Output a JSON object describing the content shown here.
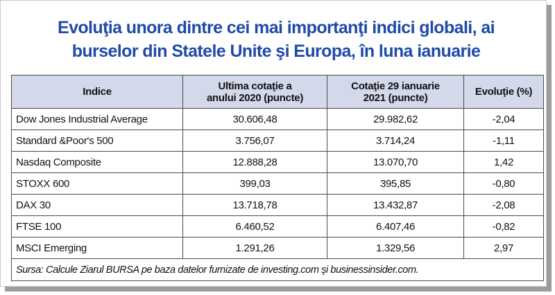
{
  "title": {
    "line1": "Evoluţia unora dintre cei mai importanţi indici globali, ai",
    "line2": "burselor din Statele Unite şi Europa, în luna ianuarie"
  },
  "table": {
    "headers": {
      "index": "Indice",
      "last_quote_line1": "Ultima cotaţie a",
      "last_quote_line2": "anului 2020  (puncte)",
      "jan29_line1": "Cotaţie 29 ianuarie",
      "jan29_line2": "2021 (puncte)",
      "change": "Evoluţie (%)"
    },
    "rows": [
      {
        "name": "Dow Jones Industrial Average",
        "last_2020": "30.606,48",
        "jan29_2021": "29.982,62",
        "change": "-2,04"
      },
      {
        "name": "Standard &Poor's 500",
        "last_2020": "3.756,07",
        "jan29_2021": "3.714,24",
        "change": "-1,11"
      },
      {
        "name": "Nasdaq Composite",
        "last_2020": "12.888,28",
        "jan29_2021": "13.070,70",
        "change": "1,42"
      },
      {
        "name": "STOXX 600",
        "last_2020": "399,03",
        "jan29_2021": "395,85",
        "change": "-0,80"
      },
      {
        "name": "DAX 30",
        "last_2020": "13.718,78",
        "jan29_2021": "13.432,87",
        "change": "-2,08"
      },
      {
        "name": "FTSE 100",
        "last_2020": "6.460,52",
        "jan29_2021": "6.407,46",
        "change": "-0,82"
      },
      {
        "name": "MSCI Emerging",
        "last_2020": "1.291,26",
        "jan29_2021": "1.329,56",
        "change": "2,97"
      }
    ],
    "source": "Sursa: Calcule Ziarul BURSA pe baza datelor furnizate de investing.com şi businessinsider.com."
  },
  "colors": {
    "title": "#1f4aa8",
    "header_background": "#d3d9ea",
    "border": "#4a4a4a",
    "shadow": "#9c9c9c"
  }
}
